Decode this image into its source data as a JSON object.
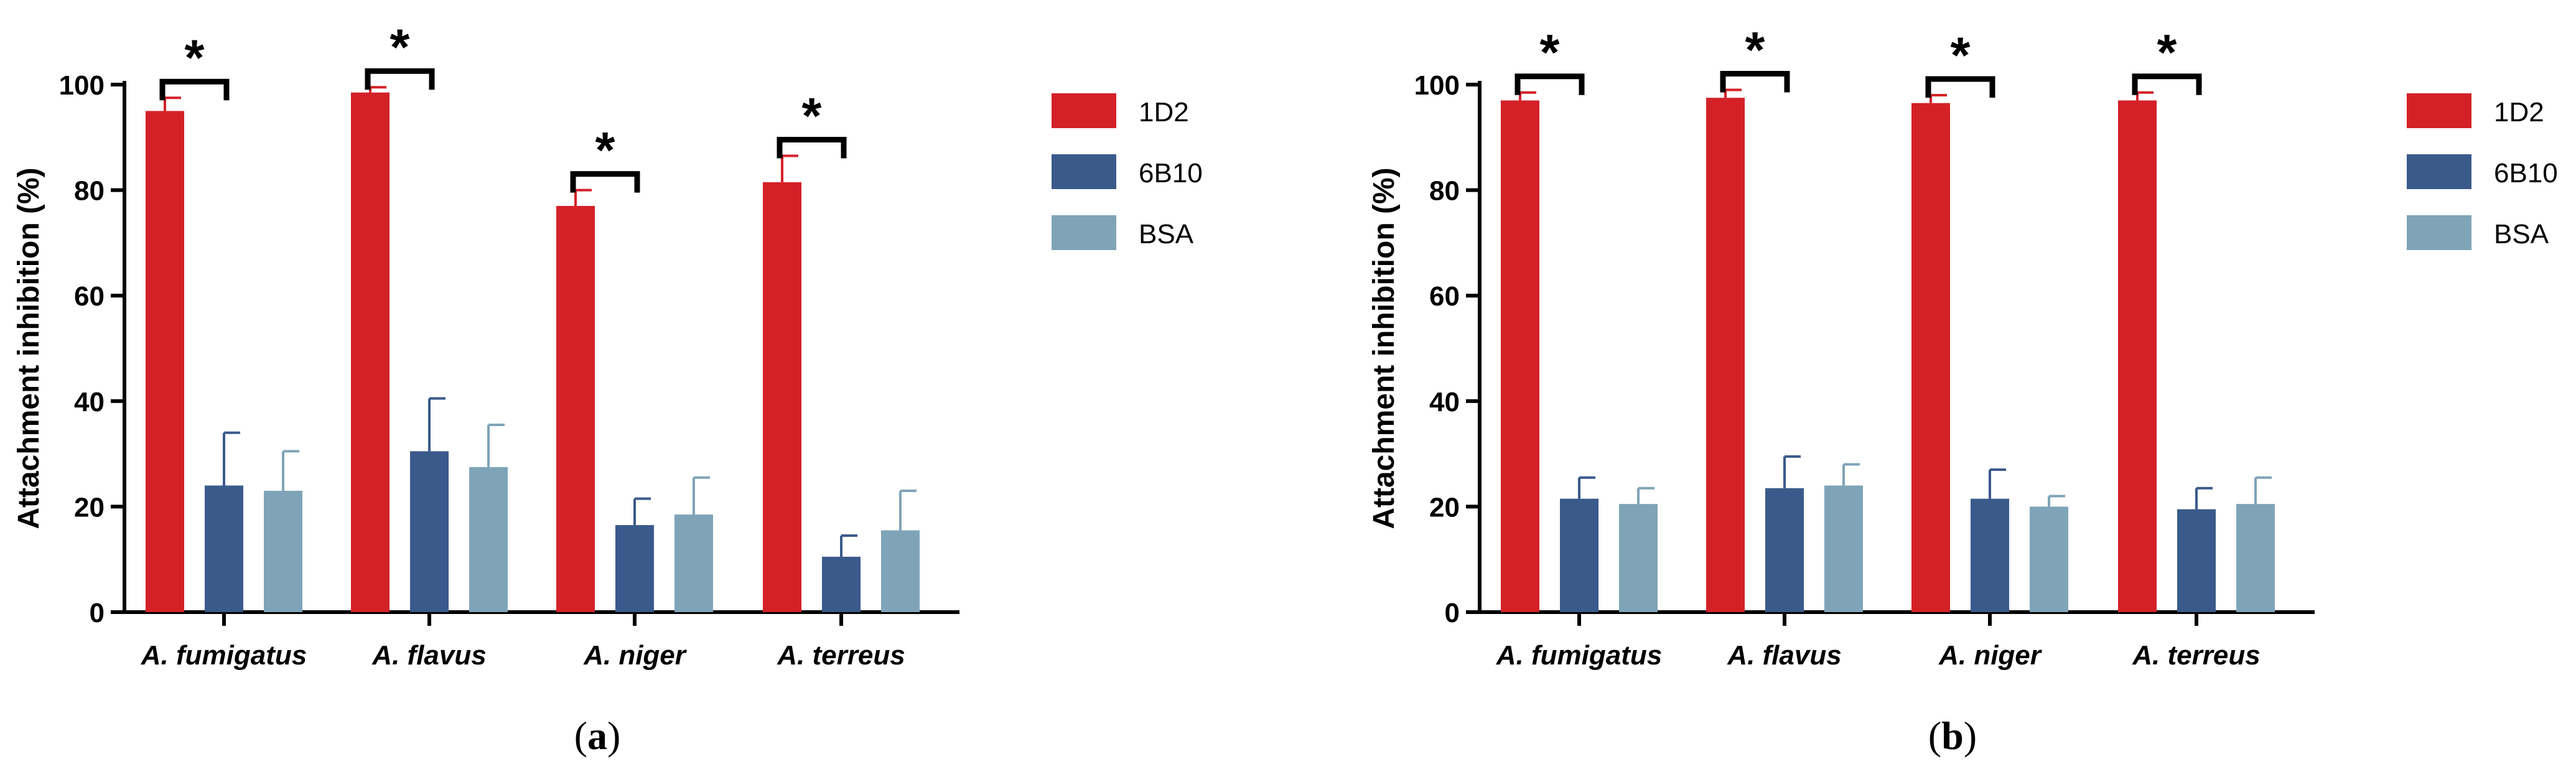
{
  "chart_data": [
    {
      "type": "bar",
      "panel_label": {
        "open": "(",
        "letter": "a",
        "close": ")"
      },
      "title": "",
      "xlabel": "",
      "ylabel": "Attachment inhibition (%)",
      "ylim": [
        0,
        100
      ],
      "yticks": [
        0,
        20,
        40,
        60,
        80,
        100
      ],
      "categories": [
        "A. fumigatus",
        "A. flavus",
        "A. niger",
        "A. terreus"
      ],
      "series": [
        {
          "name": "1D2",
          "color": "#d42128",
          "values": [
            95,
            98.5,
            77,
            81.5
          ],
          "errors": [
            2.5,
            1,
            3,
            5
          ]
        },
        {
          "name": "6B10",
          "color": "#3a5a8b",
          "values": [
            24,
            30.5,
            16.5,
            10.5
          ],
          "errors": [
            10,
            10,
            5,
            4
          ]
        },
        {
          "name": "BSA",
          "color": "#7fa4b8",
          "values": [
            23,
            27.5,
            18.5,
            15.5
          ],
          "errors": [
            7.5,
            8,
            7,
            7.5
          ]
        }
      ],
      "significance": [
        {
          "category": "A. fumigatus",
          "label": "*"
        },
        {
          "category": "A. flavus",
          "label": "*"
        },
        {
          "category": "A. niger",
          "label": "*"
        },
        {
          "category": "A. terreus",
          "label": "*"
        }
      ],
      "legend_position": "top-right",
      "grid": false
    },
    {
      "type": "bar",
      "panel_label": {
        "open": "(",
        "letter": "b",
        "close": ")"
      },
      "title": "",
      "xlabel": "",
      "ylabel": "Attachment inhibition (%)",
      "ylim": [
        0,
        100
      ],
      "yticks": [
        0,
        20,
        40,
        60,
        80,
        100
      ],
      "categories": [
        "A. fumigatus",
        "A. flavus",
        "A. niger",
        "A. terreus"
      ],
      "series": [
        {
          "name": "1D2",
          "color": "#d42128",
          "values": [
            97,
            97.5,
            96.5,
            97
          ],
          "errors": [
            1.5,
            1.5,
            1.5,
            1.5
          ]
        },
        {
          "name": "6B10",
          "color": "#3a5a8b",
          "values": [
            21.5,
            23.5,
            21.5,
            19.5
          ],
          "errors": [
            4,
            6,
            5.5,
            4
          ]
        },
        {
          "name": "BSA",
          "color": "#7fa4b8",
          "values": [
            20.5,
            24,
            20,
            20.5
          ],
          "errors": [
            3,
            4,
            2,
            5
          ]
        }
      ],
      "significance": [
        {
          "category": "A. fumigatus",
          "label": "*"
        },
        {
          "category": "A. flavus",
          "label": "*"
        },
        {
          "category": "A. niger",
          "label": "*"
        },
        {
          "category": "A. terreus",
          "label": "*"
        }
      ],
      "legend_position": "top-right",
      "grid": false
    }
  ]
}
